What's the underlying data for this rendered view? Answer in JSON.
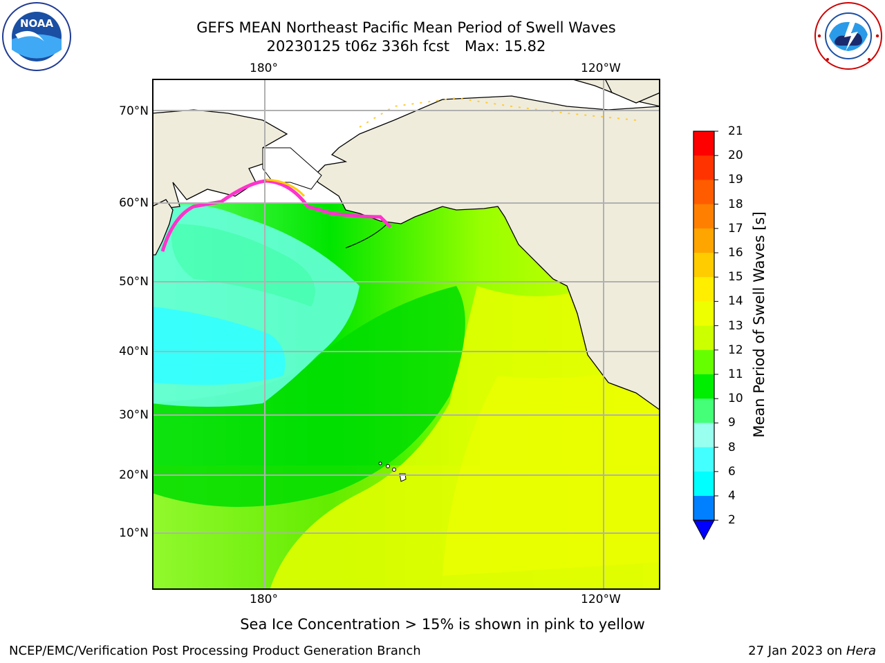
{
  "header": {
    "title_line1": "GEFS MEAN Northeast Pacific Mean Period of Swell Waves",
    "title_date": "20230125 t06z 336h fcst",
    "title_max": "Max: 15.82"
  },
  "map": {
    "lon_labels": [
      "180°",
      "120°W"
    ],
    "lat_labels": [
      "70°N",
      "60°N",
      "50°N",
      "40°N",
      "30°N",
      "20°N",
      "10°N"
    ],
    "land_color": "#efecdc",
    "grid_color": "#b0b0b0"
  },
  "colorbar": {
    "label": "Mean Period of Swell Waves [s]",
    "ticks": [
      "21",
      "20",
      "19",
      "18",
      "17",
      "16",
      "15",
      "14",
      "13",
      "12",
      "11",
      "10",
      "9",
      "8",
      "6",
      "4",
      "2"
    ],
    "colors": [
      "#ff0000",
      "#ff3300",
      "#ff5c00",
      "#ff8000",
      "#ffa500",
      "#ffcc00",
      "#ffee00",
      "#eeff00",
      "#ccff00",
      "#66ff00",
      "#00ee00",
      "#44ff77",
      "#99ffee",
      "#44ffff",
      "#00ffff",
      "#0080ff",
      "#0000ff"
    ]
  },
  "footer": {
    "sea_ice_note": "Sea Ice Concentration > 15% is shown in pink to yellow",
    "producer": "NCEP/EMC/Verification Post Processing Product Generation Branch",
    "run_date": "27 Jan 2023 on",
    "machine": "Hera"
  },
  "logos": {
    "noaa_text": "NOAA",
    "noaa_ring_text": "NATIONAL OCEANIC AND ATMOSPHERIC ADMINISTRATION",
    "nws_ring_text": "NATIONAL WEATHER SERVICE"
  }
}
